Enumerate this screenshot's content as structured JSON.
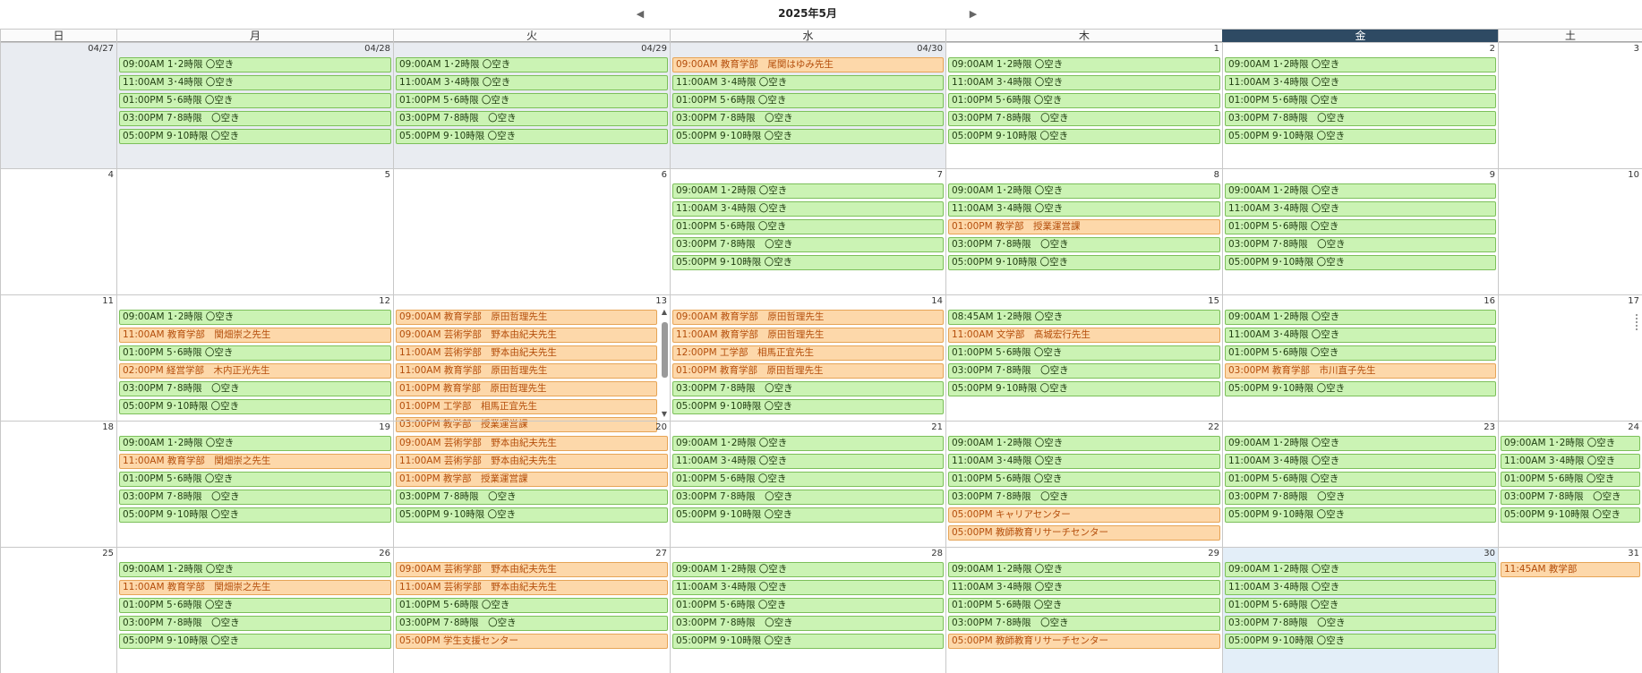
{
  "header": {
    "title": "2025年5月",
    "prev_icon": "left-arrow",
    "next_icon": "right-arrow"
  },
  "weekdays": [
    "日",
    "月",
    "火",
    "水",
    "木",
    "金",
    "土"
  ],
  "today_column": 5,
  "colors": {
    "free_bg": "#cbf3b4",
    "free_border": "#7cbf5a",
    "booked_bg": "#fdd8aa",
    "booked_border": "#e6a456",
    "booked_text": "#b44d0a",
    "today_header": "#2e4a63",
    "past_bg": "#e9ecf1",
    "today_bg": "#e3eef8"
  },
  "weeks": [
    {
      "days": [
        {
          "label": "04/27",
          "state": "past",
          "events": []
        },
        {
          "label": "04/28",
          "state": "past",
          "events": [
            {
              "text": "09:00AM 1･2時限 〇空き",
              "type": "free"
            },
            {
              "text": "11:00AM 3･4時限 〇空き",
              "type": "free"
            },
            {
              "text": "01:00PM 5･6時限 〇空き",
              "type": "free"
            },
            {
              "text": "03:00PM 7･8時限　〇空き",
              "type": "free"
            },
            {
              "text": "05:00PM 9･10時限 〇空き",
              "type": "free"
            }
          ]
        },
        {
          "label": "04/29",
          "state": "past",
          "events": [
            {
              "text": "09:00AM 1･2時限 〇空き",
              "type": "free"
            },
            {
              "text": "11:00AM 3･4時限 〇空き",
              "type": "free"
            },
            {
              "text": "01:00PM 5･6時限 〇空き",
              "type": "free"
            },
            {
              "text": "03:00PM 7･8時限　〇空き",
              "type": "free"
            },
            {
              "text": "05:00PM 9･10時限 〇空き",
              "type": "free"
            }
          ]
        },
        {
          "label": "04/30",
          "state": "past",
          "events": [
            {
              "text": "09:00AM 教育学部　尾関はゆみ先生",
              "type": "booked"
            },
            {
              "text": "11:00AM 3･4時限 〇空き",
              "type": "free"
            },
            {
              "text": "01:00PM 5･6時限 〇空き",
              "type": "free"
            },
            {
              "text": "03:00PM 7･8時限　〇空き",
              "type": "free"
            },
            {
              "text": "05:00PM 9･10時限 〇空き",
              "type": "free"
            }
          ]
        },
        {
          "label": "1",
          "state": "",
          "events": [
            {
              "text": "09:00AM 1･2時限 〇空き",
              "type": "free"
            },
            {
              "text": "11:00AM 3･4時限 〇空き",
              "type": "free"
            },
            {
              "text": "01:00PM 5･6時限 〇空き",
              "type": "free"
            },
            {
              "text": "03:00PM 7･8時限　〇空き",
              "type": "free"
            },
            {
              "text": "05:00PM 9･10時限 〇空き",
              "type": "free"
            }
          ]
        },
        {
          "label": "2",
          "state": "",
          "events": [
            {
              "text": "09:00AM 1･2時限 〇空き",
              "type": "free"
            },
            {
              "text": "11:00AM 3･4時限 〇空き",
              "type": "free"
            },
            {
              "text": "01:00PM 5･6時限 〇空き",
              "type": "free"
            },
            {
              "text": "03:00PM 7･8時限　〇空き",
              "type": "free"
            },
            {
              "text": "05:00PM 9･10時限 〇空き",
              "type": "free"
            }
          ]
        },
        {
          "label": "3",
          "state": "",
          "events": []
        }
      ]
    },
    {
      "days": [
        {
          "label": "4",
          "state": "",
          "events": []
        },
        {
          "label": "5",
          "state": "",
          "events": []
        },
        {
          "label": "6",
          "state": "",
          "events": []
        },
        {
          "label": "7",
          "state": "",
          "events": [
            {
              "text": "09:00AM 1･2時限 〇空き",
              "type": "free"
            },
            {
              "text": "11:00AM 3･4時限 〇空き",
              "type": "free"
            },
            {
              "text": "01:00PM 5･6時限 〇空き",
              "type": "free"
            },
            {
              "text": "03:00PM 7･8時限　〇空き",
              "type": "free"
            },
            {
              "text": "05:00PM 9･10時限 〇空き",
              "type": "free"
            }
          ]
        },
        {
          "label": "8",
          "state": "",
          "events": [
            {
              "text": "09:00AM 1･2時限 〇空き",
              "type": "free"
            },
            {
              "text": "11:00AM 3･4時限 〇空き",
              "type": "free"
            },
            {
              "text": "01:00PM 教学部　授業運営課",
              "type": "booked"
            },
            {
              "text": "03:00PM 7･8時限　〇空き",
              "type": "free"
            },
            {
              "text": "05:00PM 9･10時限 〇空き",
              "type": "free"
            }
          ]
        },
        {
          "label": "9",
          "state": "",
          "events": [
            {
              "text": "09:00AM 1･2時限 〇空き",
              "type": "free"
            },
            {
              "text": "11:00AM 3･4時限 〇空き",
              "type": "free"
            },
            {
              "text": "01:00PM 5･6時限 〇空き",
              "type": "free"
            },
            {
              "text": "03:00PM 7･8時限　〇空き",
              "type": "free"
            },
            {
              "text": "05:00PM 9･10時限 〇空き",
              "type": "free"
            }
          ]
        },
        {
          "label": "10",
          "state": "",
          "events": []
        }
      ]
    },
    {
      "days": [
        {
          "label": "11",
          "state": "",
          "events": []
        },
        {
          "label": "12",
          "state": "",
          "events": [
            {
              "text": "09:00AM 1･2時限 〇空き",
              "type": "free"
            },
            {
              "text": "11:00AM 教育学部　関畑崇之先生",
              "type": "booked"
            },
            {
              "text": "01:00PM 5･6時限 〇空き",
              "type": "free"
            },
            {
              "text": "02:00PM 経営学部　木内正光先生",
              "type": "booked"
            },
            {
              "text": "03:00PM 7･8時限　〇空き",
              "type": "free"
            },
            {
              "text": "05:00PM 9･10時限 〇空き",
              "type": "free"
            }
          ]
        },
        {
          "label": "13",
          "state": "",
          "scroll": true,
          "events": [
            {
              "text": "09:00AM 教育学部　原田哲理先生",
              "type": "booked"
            },
            {
              "text": "09:00AM 芸術学部　野本由紀夫先生",
              "type": "booked"
            },
            {
              "text": "11:00AM 芸術学部　野本由紀夫先生",
              "type": "booked"
            },
            {
              "text": "11:00AM 教育学部　原田哲理先生",
              "type": "booked"
            },
            {
              "text": "01:00PM 教育学部　原田哲理先生",
              "type": "booked"
            },
            {
              "text": "01:00PM 工学部　相馬正宜先生",
              "type": "booked"
            },
            {
              "text": "03:00PM 教学部　授業運営課",
              "type": "booked"
            }
          ]
        },
        {
          "label": "14",
          "state": "",
          "events": [
            {
              "text": "09:00AM 教育学部　原田哲理先生",
              "type": "booked"
            },
            {
              "text": "11:00AM 教育学部　原田哲理先生",
              "type": "booked"
            },
            {
              "text": "12:00PM 工学部　相馬正宜先生",
              "type": "booked"
            },
            {
              "text": "01:00PM 教育学部　原田哲理先生",
              "type": "booked"
            },
            {
              "text": "03:00PM 7･8時限　〇空き",
              "type": "free"
            },
            {
              "text": "05:00PM 9･10時限 〇空き",
              "type": "free"
            }
          ]
        },
        {
          "label": "15",
          "state": "",
          "events": [
            {
              "text": "08:45AM 1･2時限 〇空き",
              "type": "free"
            },
            {
              "text": "11:00AM 文学部　髙城宏行先生",
              "type": "booked"
            },
            {
              "text": "01:00PM 5･6時限 〇空き",
              "type": "free"
            },
            {
              "text": "03:00PM 7･8時限　〇空き",
              "type": "free"
            },
            {
              "text": "05:00PM 9･10時限 〇空き",
              "type": "free"
            }
          ]
        },
        {
          "label": "16",
          "state": "",
          "events": [
            {
              "text": "09:00AM 1･2時限 〇空き",
              "type": "free"
            },
            {
              "text": "11:00AM 3･4時限 〇空き",
              "type": "free"
            },
            {
              "text": "01:00PM 5･6時限 〇空き",
              "type": "free"
            },
            {
              "text": "03:00PM 教育学部　市川直子先生",
              "type": "booked"
            },
            {
              "text": "05:00PM 9･10時限 〇空き",
              "type": "free"
            }
          ]
        },
        {
          "label": "17",
          "state": "",
          "events": []
        }
      ]
    },
    {
      "days": [
        {
          "label": "18",
          "state": "",
          "events": []
        },
        {
          "label": "19",
          "state": "",
          "events": [
            {
              "text": "09:00AM 1･2時限 〇空き",
              "type": "free"
            },
            {
              "text": "11:00AM 教育学部　関畑崇之先生",
              "type": "booked"
            },
            {
              "text": "01:00PM 5･6時限 〇空き",
              "type": "free"
            },
            {
              "text": "03:00PM 7･8時限　〇空き",
              "type": "free"
            },
            {
              "text": "05:00PM 9･10時限 〇空き",
              "type": "free"
            }
          ]
        },
        {
          "label": "20",
          "state": "",
          "events": [
            {
              "text": "09:00AM 芸術学部　野本由紀夫先生",
              "type": "booked"
            },
            {
              "text": "11:00AM 芸術学部　野本由紀夫先生",
              "type": "booked"
            },
            {
              "text": "01:00PM 教学部　授業運営課",
              "type": "booked"
            },
            {
              "text": "03:00PM 7･8時限　〇空き",
              "type": "free"
            },
            {
              "text": "05:00PM 9･10時限 〇空き",
              "type": "free"
            }
          ]
        },
        {
          "label": "21",
          "state": "",
          "events": [
            {
              "text": "09:00AM 1･2時限 〇空き",
              "type": "free"
            },
            {
              "text": "11:00AM 3･4時限 〇空き",
              "type": "free"
            },
            {
              "text": "01:00PM 5･6時限 〇空き",
              "type": "free"
            },
            {
              "text": "03:00PM 7･8時限　〇空き",
              "type": "free"
            },
            {
              "text": "05:00PM 9･10時限 〇空き",
              "type": "free"
            }
          ]
        },
        {
          "label": "22",
          "state": "",
          "events": [
            {
              "text": "09:00AM 1･2時限 〇空き",
              "type": "free"
            },
            {
              "text": "11:00AM 3･4時限 〇空き",
              "type": "free"
            },
            {
              "text": "01:00PM 5･6時限 〇空き",
              "type": "free"
            },
            {
              "text": "03:00PM 7･8時限　〇空き",
              "type": "free"
            },
            {
              "text": "05:00PM キャリアセンター",
              "type": "booked"
            },
            {
              "text": "05:00PM 教師教育リサーチセンター",
              "type": "booked"
            }
          ]
        },
        {
          "label": "23",
          "state": "",
          "events": [
            {
              "text": "09:00AM 1･2時限 〇空き",
              "type": "free"
            },
            {
              "text": "11:00AM 3･4時限 〇空き",
              "type": "free"
            },
            {
              "text": "01:00PM 5･6時限 〇空き",
              "type": "free"
            },
            {
              "text": "03:00PM 7･8時限　〇空き",
              "type": "free"
            },
            {
              "text": "05:00PM 9･10時限 〇空き",
              "type": "free"
            }
          ]
        },
        {
          "label": "24",
          "state": "",
          "events": [
            {
              "text": "09:00AM 1･2時限 〇空き",
              "type": "free"
            },
            {
              "text": "11:00AM 3･4時限 〇空き",
              "type": "free"
            },
            {
              "text": "01:00PM 5･6時限 〇空き",
              "type": "free"
            },
            {
              "text": "03:00PM 7･8時限　〇空き",
              "type": "free"
            },
            {
              "text": "05:00PM 9･10時限 〇空き",
              "type": "free"
            }
          ]
        }
      ]
    },
    {
      "days": [
        {
          "label": "25",
          "state": "",
          "events": []
        },
        {
          "label": "26",
          "state": "",
          "events": [
            {
              "text": "09:00AM 1･2時限 〇空き",
              "type": "free"
            },
            {
              "text": "11:00AM 教育学部　関畑崇之先生",
              "type": "booked"
            },
            {
              "text": "01:00PM 5･6時限 〇空き",
              "type": "free"
            },
            {
              "text": "03:00PM 7･8時限　〇空き",
              "type": "free"
            },
            {
              "text": "05:00PM 9･10時限 〇空き",
              "type": "free"
            }
          ]
        },
        {
          "label": "27",
          "state": "",
          "events": [
            {
              "text": "09:00AM 芸術学部　野本由紀夫先生",
              "type": "booked"
            },
            {
              "text": "11:00AM 芸術学部　野本由紀夫先生",
              "type": "booked"
            },
            {
              "text": "01:00PM 5･6時限 〇空き",
              "type": "free"
            },
            {
              "text": "03:00PM 7･8時限　〇空き",
              "type": "free"
            },
            {
              "text": "05:00PM 学生支援センター",
              "type": "booked"
            }
          ]
        },
        {
          "label": "28",
          "state": "",
          "events": [
            {
              "text": "09:00AM 1･2時限 〇空き",
              "type": "free"
            },
            {
              "text": "11:00AM 3･4時限 〇空き",
              "type": "free"
            },
            {
              "text": "01:00PM 5･6時限 〇空き",
              "type": "free"
            },
            {
              "text": "03:00PM 7･8時限　〇空き",
              "type": "free"
            },
            {
              "text": "05:00PM 9･10時限 〇空き",
              "type": "free"
            }
          ]
        },
        {
          "label": "29",
          "state": "",
          "events": [
            {
              "text": "09:00AM 1･2時限 〇空き",
              "type": "free"
            },
            {
              "text": "11:00AM 3･4時限 〇空き",
              "type": "free"
            },
            {
              "text": "01:00PM 5･6時限 〇空き",
              "type": "free"
            },
            {
              "text": "03:00PM 7･8時限　〇空き",
              "type": "free"
            },
            {
              "text": "05:00PM 教師教育リサーチセンター",
              "type": "booked"
            }
          ]
        },
        {
          "label": "30",
          "state": "today",
          "events": [
            {
              "text": "09:00AM 1･2時限 〇空き",
              "type": "free"
            },
            {
              "text": "11:00AM 3･4時限 〇空き",
              "type": "free"
            },
            {
              "text": "01:00PM 5･6時限 〇空き",
              "type": "free"
            },
            {
              "text": "03:00PM 7･8時限　〇空き",
              "type": "free"
            },
            {
              "text": "05:00PM 9･10時限 〇空き",
              "type": "free"
            }
          ]
        },
        {
          "label": "31",
          "state": "",
          "events": [
            {
              "text": "11:45AM 教学部",
              "type": "booked"
            }
          ]
        }
      ]
    }
  ]
}
